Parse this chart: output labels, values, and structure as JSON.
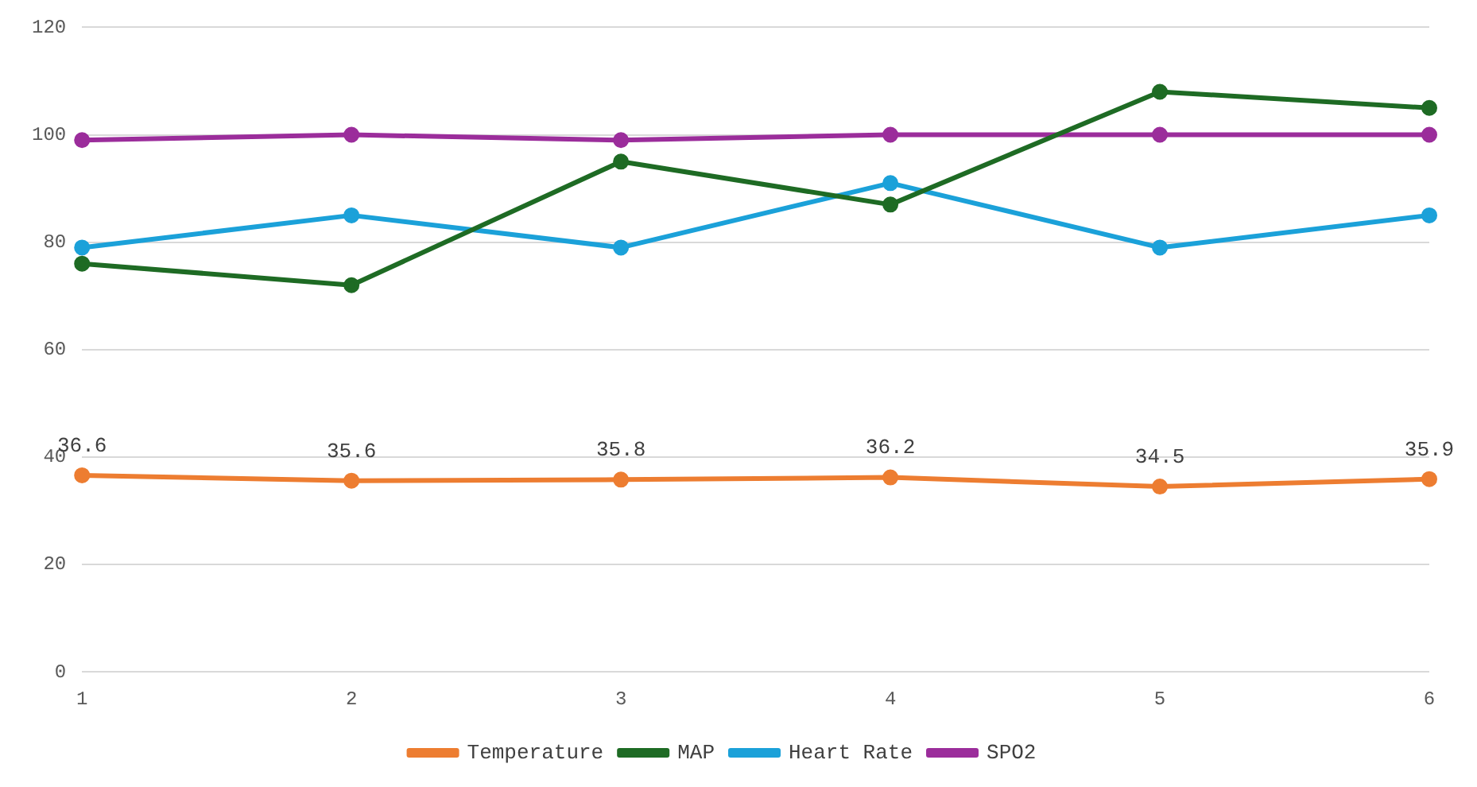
{
  "chart_data": {
    "type": "line",
    "categories": [
      "1",
      "2",
      "3",
      "4",
      "5",
      "6"
    ],
    "series": [
      {
        "name": "Temperature",
        "color": "#ed7d31",
        "values": [
          36.6,
          35.6,
          35.8,
          36.2,
          34.5,
          35.9
        ],
        "value_labels": [
          "36.6",
          "35.6",
          "35.8",
          "36.2",
          "34.5",
          "35.9"
        ]
      },
      {
        "name": "MAP",
        "color": "#1e6b24",
        "values": [
          76,
          72,
          95,
          87,
          108,
          105
        ]
      },
      {
        "name": "Heart Rate",
        "color": "#1ba1d9",
        "values": [
          79,
          85,
          79,
          91,
          79,
          85
        ]
      },
      {
        "name": "SPO2",
        "color": "#9b2d9b",
        "values": [
          99,
          100,
          99,
          100,
          100,
          100
        ]
      }
    ],
    "ylim": [
      0,
      120
    ],
    "yticks": [
      0,
      20,
      40,
      60,
      80,
      100,
      120
    ],
    "grid": "y",
    "legend": "bottom",
    "marker": "circle",
    "line_style": "solid"
  }
}
